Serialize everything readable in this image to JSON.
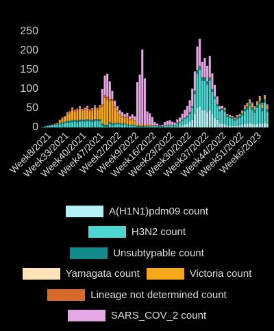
{
  "chart_data": {
    "type": "bar",
    "stacked": true,
    "categories": [
      null,
      null,
      null,
      "Week8/2021",
      null,
      null,
      null,
      null,
      null,
      null,
      "Week33/2021",
      null,
      null,
      null,
      null,
      null,
      null,
      "Week40/2021",
      null,
      null,
      null,
      null,
      null,
      null,
      "Week47/2021",
      null,
      null,
      null,
      null,
      null,
      null,
      "Week2/2022",
      null,
      null,
      null,
      null,
      null,
      null,
      "Week9/2022",
      null,
      null,
      null,
      null,
      null,
      null,
      "Week16/2022",
      null,
      null,
      null,
      null,
      null,
      null,
      "Week23/2022",
      null,
      null,
      null,
      null,
      null,
      null,
      "Week30/2022",
      null,
      null,
      null,
      null,
      null,
      null,
      "Week37/2022",
      null,
      null,
      null,
      null,
      null,
      null,
      "Week44/2022",
      null,
      null,
      null,
      null,
      null,
      null,
      "Week51/2022",
      null,
      null,
      null,
      null,
      null,
      null,
      "Week6/2023",
      null,
      null,
      null
    ],
    "ylim": [
      0,
      250
    ],
    "yticks": [
      0,
      50,
      100,
      150,
      200,
      250
    ],
    "grid": false,
    "series": [
      {
        "name": "A(H1N1)pdm09 count",
        "color": "#b3f1f2",
        "values": [
          0,
          0,
          0,
          0,
          0,
          0,
          0,
          0,
          0,
          0,
          0,
          0,
          0,
          0,
          0,
          0,
          0,
          0,
          0,
          0,
          0,
          0,
          0,
          0,
          0,
          0,
          0,
          0,
          0,
          0,
          0,
          0,
          0,
          0,
          0,
          0,
          0,
          0,
          0,
          0,
          0,
          0,
          0,
          0,
          0,
          0,
          0,
          0,
          0,
          0,
          0,
          0,
          0,
          0,
          2,
          3,
          5,
          8,
          10,
          15,
          20,
          35,
          50,
          55,
          45,
          45,
          40,
          45,
          35,
          25,
          20,
          12,
          10,
          8,
          6,
          5,
          4,
          4,
          5,
          6,
          8,
          10,
          10,
          12,
          10,
          8,
          10,
          12,
          10,
          12,
          10
        ]
      },
      {
        "name": "H3N2 count",
        "color": "#4dd6cf",
        "values": [
          1,
          2,
          4,
          5,
          6,
          7,
          7,
          8,
          10,
          12,
          13,
          13,
          14,
          15,
          14,
          15,
          16,
          15,
          16,
          16,
          15,
          16,
          17,
          16,
          5,
          2,
          2,
          9,
          6,
          7,
          9,
          8,
          7,
          8,
          6,
          5,
          5,
          5,
          2,
          2,
          2,
          2,
          3,
          3,
          3,
          4,
          3,
          2,
          2,
          4,
          5,
          5,
          5,
          5,
          8,
          10,
          12,
          14,
          16,
          20,
          30,
          52,
          90,
          95,
          77,
          77,
          72,
          77,
          58,
          49,
          35,
          30,
          35,
          33,
          21,
          19,
          18,
          14,
          17,
          19,
          23,
          32,
          37,
          43,
          35,
          30,
          40,
          48,
          32,
          53,
          30
        ]
      },
      {
        "name": "Unsubtypable count",
        "color": "#138a8a",
        "values": [
          1,
          1,
          1,
          1,
          2,
          2,
          2,
          3,
          3,
          3,
          4,
          4,
          5,
          4,
          5,
          5,
          4,
          5,
          5,
          4,
          4,
          5,
          4,
          5,
          5,
          5,
          5,
          5,
          4,
          4,
          3,
          3,
          3,
          2,
          2,
          2,
          2,
          2,
          2,
          2,
          2,
          2,
          1,
          1,
          1,
          1,
          1,
          1,
          1,
          1,
          1,
          1,
          1,
          1,
          2,
          2,
          3,
          3,
          4,
          5,
          5,
          8,
          10,
          10,
          8,
          8,
          8,
          8,
          7,
          6,
          5,
          5,
          5,
          5,
          4,
          4,
          4,
          4,
          5,
          5,
          6,
          7,
          8,
          9,
          8,
          8,
          9,
          10,
          8,
          10,
          8
        ]
      },
      {
        "name": "Yamagata count",
        "color": "#fde3b7",
        "values": [
          0,
          0,
          0,
          0,
          0,
          0,
          0,
          0,
          0,
          0,
          0,
          0,
          1,
          0,
          0,
          0,
          1,
          0,
          0,
          0,
          0,
          0,
          0,
          0,
          0,
          0,
          0,
          0,
          0,
          0,
          0,
          0,
          0,
          0,
          0,
          0,
          0,
          0,
          0,
          0,
          0,
          0,
          0,
          0,
          0,
          0,
          0,
          0,
          0,
          0,
          0,
          0,
          0,
          0,
          0,
          0,
          0,
          0,
          0,
          0,
          0,
          0,
          0,
          0,
          0,
          0,
          0,
          0,
          0,
          0,
          0,
          0,
          0,
          0,
          0,
          0,
          0,
          0,
          0,
          0,
          0,
          0,
          0,
          0,
          0,
          0,
          0,
          0,
          0,
          0,
          0
        ]
      },
      {
        "name": "Victoria count",
        "color": "#f7a81b",
        "values": [
          0,
          0,
          0,
          0,
          0,
          1,
          2,
          8,
          10,
          12,
          18,
          20,
          25,
          22,
          25,
          28,
          22,
          25,
          28,
          22,
          25,
          30,
          25,
          30,
          45,
          70,
          65,
          55,
          60,
          40,
          30,
          22,
          18,
          15,
          18,
          12,
          15,
          10,
          4,
          4,
          4,
          4,
          3,
          3,
          3,
          1,
          1,
          0,
          0,
          1,
          1,
          1,
          1,
          1,
          1,
          1,
          1,
          1,
          1,
          1,
          1,
          1,
          1,
          1,
          1,
          1,
          1,
          1,
          1,
          1,
          1,
          1,
          1,
          1,
          1,
          2,
          2,
          2,
          3,
          3,
          4,
          5,
          5,
          5,
          8,
          5,
          5,
          8,
          10,
          5,
          8
        ]
      },
      {
        "name": "Lineage not determined count",
        "color": "#d7692a",
        "values": [
          0,
          0,
          0,
          0,
          0,
          0,
          1,
          1,
          2,
          2,
          3,
          3,
          4,
          3,
          3,
          4,
          3,
          3,
          4,
          3,
          3,
          4,
          3,
          4,
          5,
          8,
          8,
          6,
          5,
          4,
          3,
          2,
          2,
          2,
          2,
          2,
          2,
          2,
          0,
          0,
          0,
          0,
          0,
          0,
          0,
          0,
          0,
          0,
          0,
          0,
          0,
          0,
          0,
          0,
          0,
          0,
          0,
          0,
          0,
          0,
          0,
          0,
          0,
          0,
          0,
          0,
          0,
          0,
          0,
          0,
          0,
          0,
          0,
          0,
          0,
          0,
          0,
          0,
          0,
          0,
          1,
          1,
          1,
          1,
          1,
          1,
          1,
          1,
          1,
          1,
          1
        ]
      },
      {
        "name": "SARS_COV_2 count",
        "color": "#e6a8e6",
        "values": [
          0,
          0,
          0,
          0,
          0,
          0,
          0,
          0,
          1,
          1,
          2,
          2,
          3,
          2,
          2,
          3,
          2,
          3,
          3,
          2,
          3,
          3,
          2,
          3,
          40,
          50,
          60,
          45,
          20,
          15,
          10,
          10,
          10,
          8,
          10,
          8,
          10,
          10,
          110,
          130,
          195,
          120,
          35,
          30,
          20,
          8,
          5,
          2,
          4,
          8,
          10,
          12,
          8,
          6,
          8,
          10,
          15,
          20,
          25,
          30,
          45,
          50,
          60,
          70,
          40,
          50,
          40,
          55,
          40,
          30,
          20,
          8,
          5,
          4,
          3,
          2,
          2,
          2,
          2,
          2,
          2,
          3,
          3,
          3,
          3,
          3,
          3,
          3,
          3,
          3,
          3
        ]
      }
    ]
  }
}
